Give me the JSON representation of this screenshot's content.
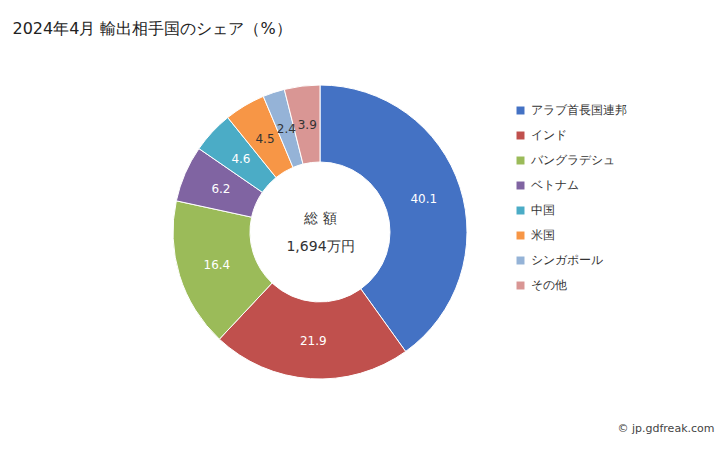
{
  "chart_data": {
    "type": "pie",
    "title": "2024年4月 輸出相手国のシェア（%）",
    "categories": [
      "アラブ首長国連邦",
      "インド",
      "バングラデシュ",
      "ベトナム",
      "中国",
      "米国",
      "シンガポール",
      "その他"
    ],
    "values": [
      40.1,
      21.9,
      16.4,
      6.2,
      4.6,
      4.5,
      2.4,
      3.9
    ],
    "colors": [
      "#4472c4",
      "#c0504d",
      "#9bbb59",
      "#8064a2",
      "#4bacc6",
      "#f79646",
      "#95b3d7",
      "#d99694"
    ],
    "data_labels": true,
    "legend": "right",
    "total_title": "総 額",
    "total": {
      "value": 1694,
      "label": "1,694万円"
    },
    "caption": "© jp.gdfreak.com"
  }
}
